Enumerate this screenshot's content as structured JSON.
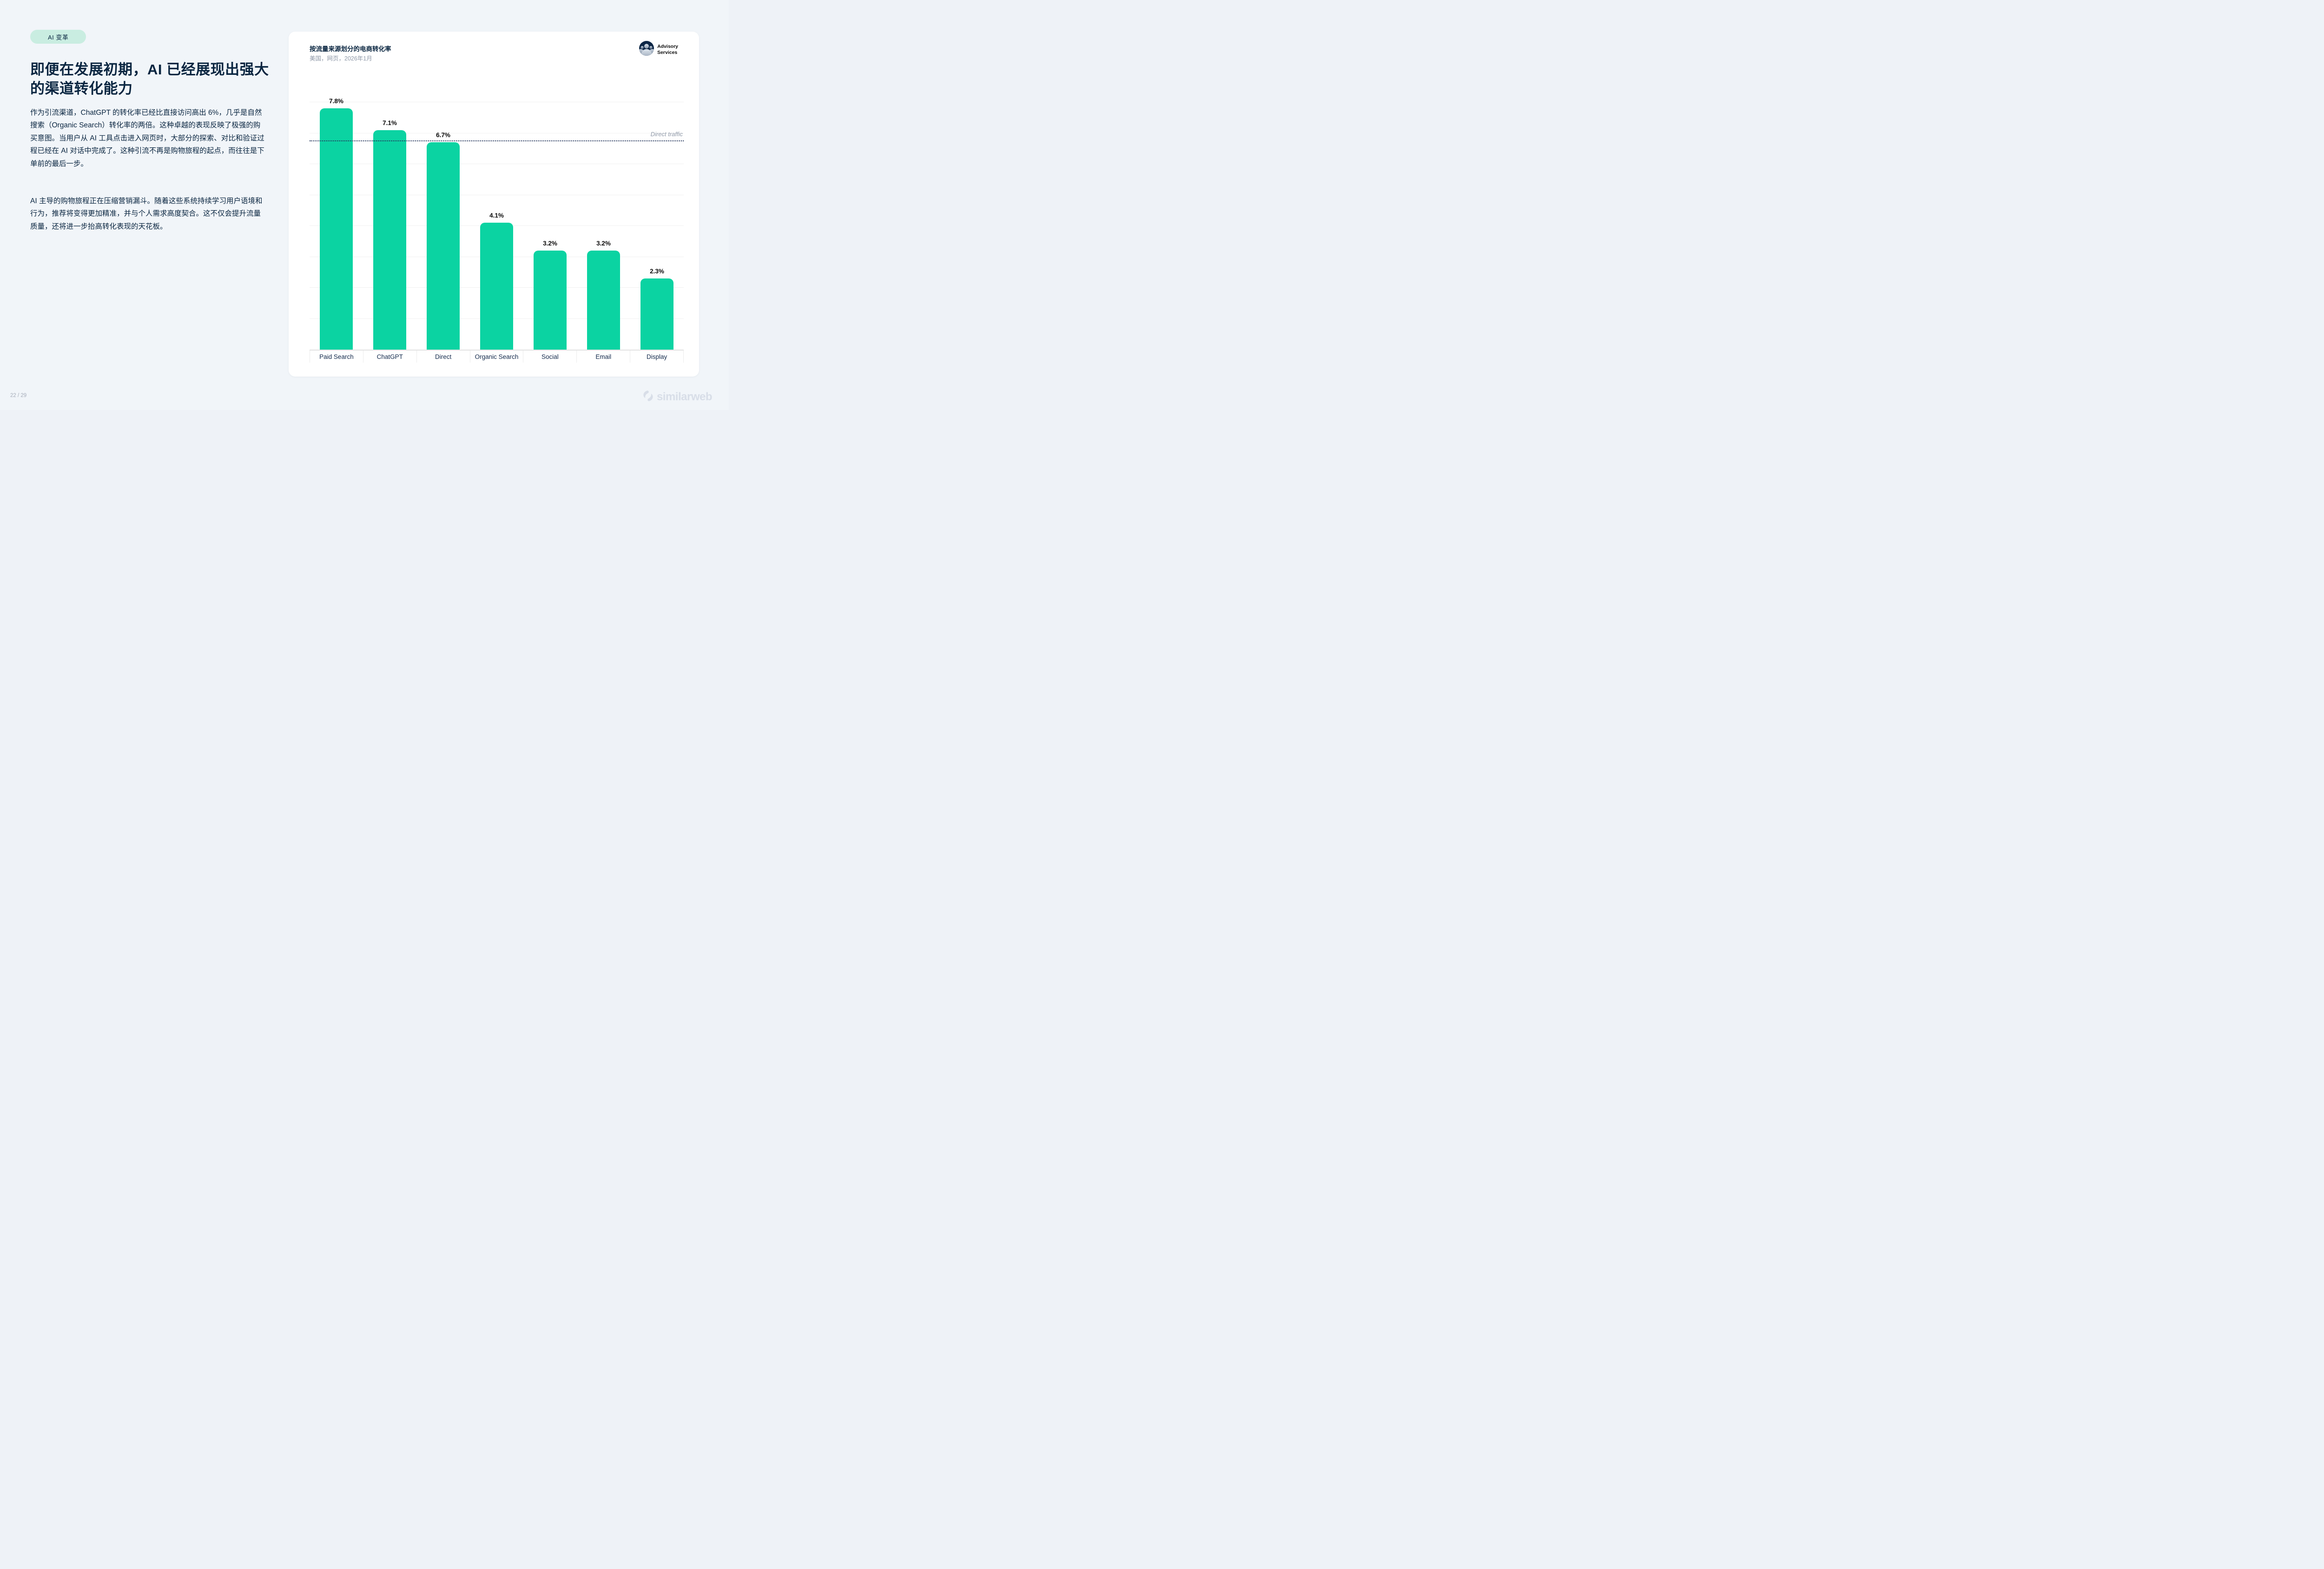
{
  "badge": {
    "label": "AI 变革"
  },
  "headline": {
    "pre": "即便在发展初期，",
    "em": "AI",
    "post": " 已经展现出强大的渠道转化能力"
  },
  "paragraphs": [
    "作为引流渠道，ChatGPT 的转化率已经比直接访问高出 6%，几乎是自然搜索（Organic Search）转化率的两倍。这种卓越的表现反映了极强的购买意图。当用户从 AI 工具点击进入网页时，大部分的探索、对比和验证过程已经在 AI 对话中完成了。这种引流不再是购物旅程的起点，而往往是下单前的最后一步。",
    "AI 主导的购物旅程正在压缩营销漏斗。随着这些系统持续学习用户语境和行为，推荐将变得更加精准，并与个人需求高度契合。这不仅会提升流量质量，还将进一步抬高转化表现的天花板。"
  ],
  "advisory": {
    "line1": "Advisory",
    "line2": "Services"
  },
  "chart_data": {
    "type": "bar",
    "title": "按流量来源划分的电商转化率",
    "subtitle": "美国，网页，2026年1月",
    "categories": [
      "Paid Search",
      "ChatGPT",
      "Direct",
      "Organic Search",
      "Social",
      "Email",
      "Display"
    ],
    "values": [
      7.8,
      7.1,
      6.7,
      4.1,
      3.2,
      3.2,
      2.3
    ],
    "value_labels": [
      "7.8%",
      "7.1%",
      "6.7%",
      "4.1%",
      "3.2%",
      "3.2%",
      "2.3%"
    ],
    "ylim": [
      0,
      8
    ],
    "grid": "horizontal gridlines every 1%, no y tick labels",
    "legend": "none",
    "bar_color": "#0bd3a2",
    "reference_line": {
      "value": 6.7,
      "label": "Direct traffic",
      "style": "dotted",
      "color": "#24365c"
    }
  },
  "footer": {
    "page_number": "22 / 29",
    "brand": "similarweb"
  },
  "colors": {
    "accent_green": "#0bd3a2",
    "navy": "#092540",
    "badge_bg": "#c9ede1",
    "subtitle_gray": "#8f99a8",
    "logo_gray": "#d8dee8",
    "page_bg": "#f1f5f9"
  }
}
